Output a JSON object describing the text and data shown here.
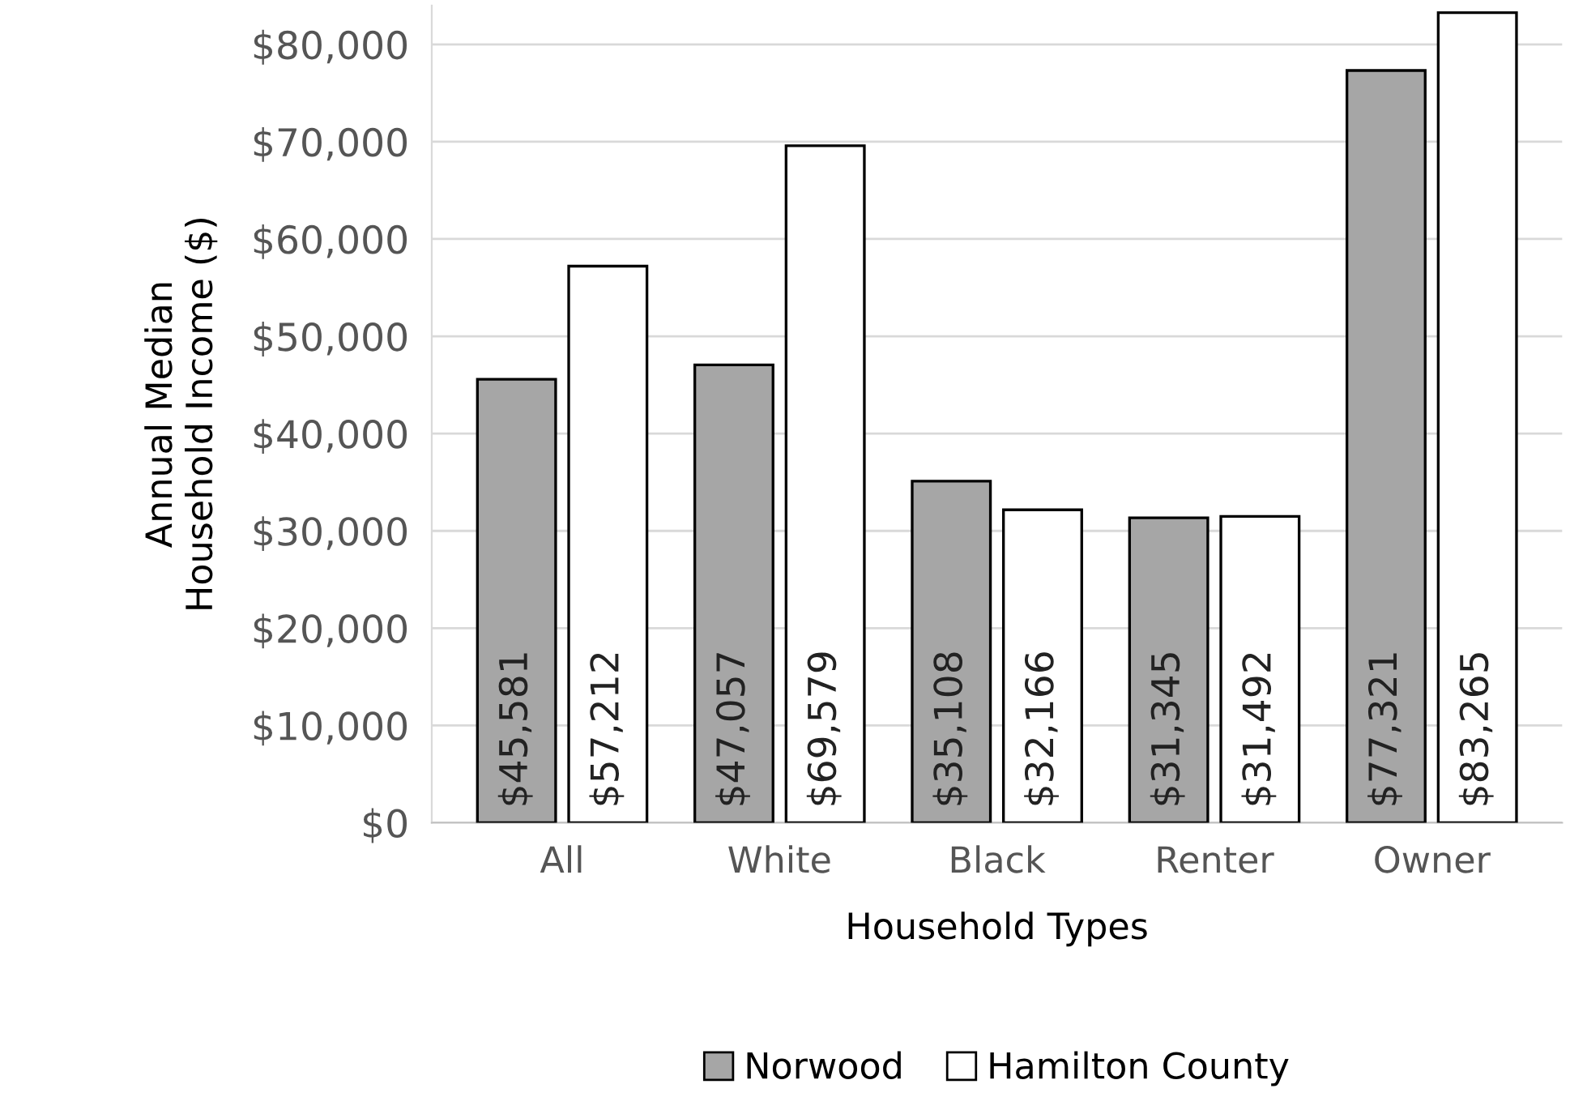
{
  "chart_data": {
    "type": "bar",
    "xlabel": "Household Types",
    "ylabel": "Annual Median\nHousehold Income ($)",
    "categories": [
      "All",
      "White",
      "Black",
      "Renter",
      "Owner"
    ],
    "series": [
      {
        "name": "Norwood",
        "color": "#a6a6a6",
        "values": [
          45581,
          47057,
          35108,
          31345,
          77321
        ],
        "value_labels": [
          "$45,581",
          "$47,057",
          "$35,108",
          "$31,345",
          "$77,321"
        ]
      },
      {
        "name": "Hamilton County",
        "color": "#ffffff",
        "values": [
          57212,
          69579,
          32166,
          31492,
          83265
        ],
        "value_labels": [
          "$57,212",
          "$69,579",
          "$32,166",
          "$31,492",
          "$83,265"
        ]
      }
    ],
    "ylim": [
      0,
      84000
    ],
    "yticks": [
      {
        "value": 0,
        "label": "$0"
      },
      {
        "value": 10000,
        "label": "$10,000"
      },
      {
        "value": 20000,
        "label": "$20,000"
      },
      {
        "value": 30000,
        "label": "$30,000"
      },
      {
        "value": 40000,
        "label": "$40,000"
      },
      {
        "value": 50000,
        "label": "$50,000"
      },
      {
        "value": 60000,
        "label": "$60,000"
      },
      {
        "value": 70000,
        "label": "$70,000"
      },
      {
        "value": 80000,
        "label": "$80,000"
      }
    ],
    "grid": "y",
    "legend": "bottom"
  }
}
